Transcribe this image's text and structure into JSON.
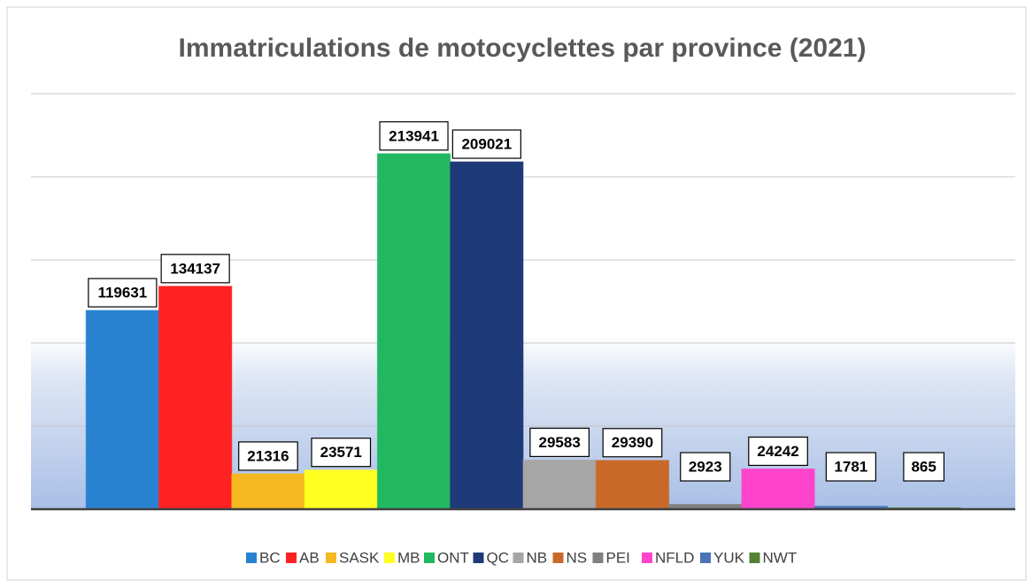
{
  "chart_data": {
    "type": "bar",
    "title": "Immatriculations de motocyclettes par province (2021)",
    "series": [
      {
        "name": "BC",
        "color": "#2882d0",
        "values": [
          119631
        ]
      },
      {
        "name": "AB",
        "color": "#ff2222",
        "values": [
          134137
        ]
      },
      {
        "name": "SASK",
        "color": "#f5b820",
        "values": [
          21316
        ]
      },
      {
        "name": "MB",
        "color": "#ffff22",
        "values": [
          23571
        ]
      },
      {
        "name": "ONT",
        "color": "#22b862",
        "values": [
          213941
        ]
      },
      {
        "name": "QC",
        "color": "#1f3a78",
        "values": [
          209021
        ]
      },
      {
        "name": "NB",
        "color": "#a6a6a6",
        "values": [
          29583
        ]
      },
      {
        "name": "NS",
        "color": "#c8692a",
        "values": [
          29390
        ]
      },
      {
        "name": "PEI",
        "color": "#808080",
        "values": [
          2923
        ]
      },
      {
        "name": "NFLD",
        "color": "#ff44cc",
        "values": [
          24242
        ]
      },
      {
        "name": "YUK",
        "color": "#4a74b8",
        "values": [
          1781
        ]
      },
      {
        "name": "NWT",
        "color": "#548235",
        "values": [
          865
        ]
      }
    ],
    "ylim": [
      0,
      250000
    ],
    "yticks": [
      0,
      50000,
      100000,
      150000,
      200000,
      250000
    ],
    "grid": true
  }
}
